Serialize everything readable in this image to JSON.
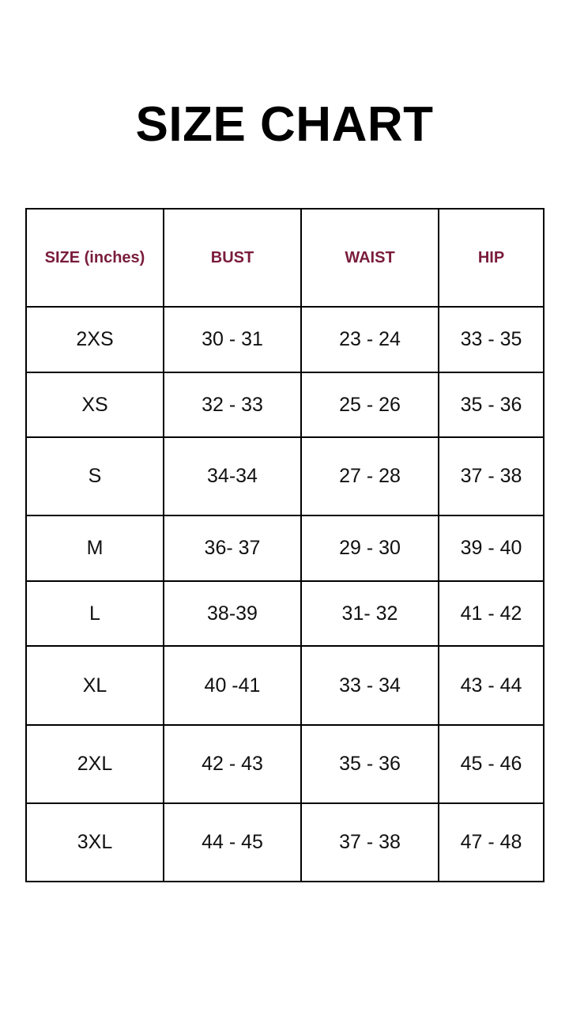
{
  "title": "SIZE CHART",
  "accent_color": "#7a1c3c",
  "table": {
    "headers": [
      "SIZE (inches)",
      "BUST",
      "WAIST",
      "HIP"
    ],
    "rows": [
      [
        "2XS",
        "30 - 31",
        "23 - 24",
        "33 - 35"
      ],
      [
        "XS",
        "32 - 33",
        "25 - 26",
        "35 - 36"
      ],
      [
        "S",
        "34-34",
        "27 - 28",
        "37 - 38"
      ],
      [
        "M",
        "36- 37",
        "29 - 30",
        "39 - 40"
      ],
      [
        "L",
        "38-39",
        "31- 32",
        "41 - 42"
      ],
      [
        "XL",
        "40 -41",
        "33 - 34",
        "43 - 44"
      ],
      [
        "2XL",
        "42 - 43",
        "35 - 36",
        "45 - 46"
      ],
      [
        "3XL",
        "44 - 45",
        "37 - 38",
        "47 - 48"
      ]
    ]
  }
}
